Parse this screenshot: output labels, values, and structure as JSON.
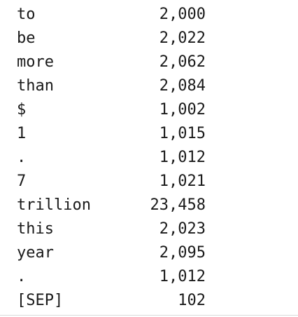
{
  "rows": [
    {
      "token": "to",
      "id": "2,000"
    },
    {
      "token": "be",
      "id": "2,022"
    },
    {
      "token": "more",
      "id": "2,062"
    },
    {
      "token": "than",
      "id": "2,084"
    },
    {
      "token": "$",
      "id": "1,002"
    },
    {
      "token": "1",
      "id": "1,015"
    },
    {
      "token": ".",
      "id": "1,012"
    },
    {
      "token": "7",
      "id": "1,021"
    },
    {
      "token": "trillion",
      "id": "23,458"
    },
    {
      "token": "this",
      "id": "2,023"
    },
    {
      "token": "year",
      "id": "2,095"
    },
    {
      "token": ".",
      "id": "1,012"
    },
    {
      "token": "[SEP]",
      "id": "102"
    }
  ]
}
